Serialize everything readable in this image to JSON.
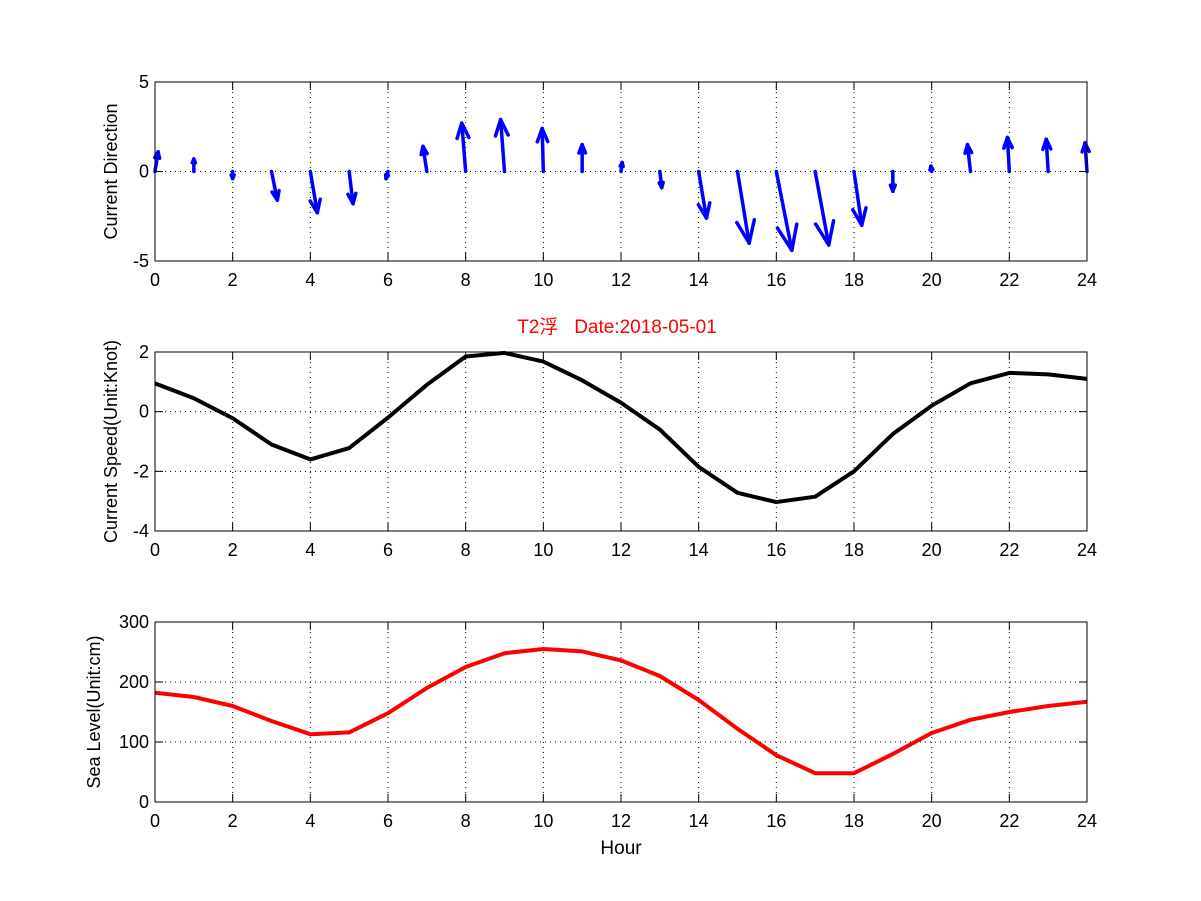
{
  "title": "T2浮   Date:2018-05-01",
  "colors": {
    "direction": "#0000ff",
    "speed": "#000000",
    "sea_level": "#ff0000",
    "title": "#ff0000"
  },
  "chart_data": [
    {
      "type": "quiver",
      "ylabel": "Current Direction",
      "xlabel": "",
      "xlim": [
        0,
        24
      ],
      "ylim": [
        -5,
        5
      ],
      "xticks": [
        0,
        2,
        4,
        6,
        8,
        10,
        12,
        14,
        16,
        18,
        20,
        22,
        24
      ],
      "yticks": [
        -5,
        0,
        5
      ],
      "grid": true,
      "x": [
        0,
        1,
        2,
        3,
        4,
        5,
        6,
        7,
        8,
        9,
        10,
        11,
        12,
        13,
        14,
        15,
        16,
        17,
        18,
        19,
        20,
        21,
        22,
        23,
        24
      ],
      "u": [
        0.08,
        0,
        0,
        0.15,
        0.18,
        0.1,
        -0.05,
        -0.1,
        -0.1,
        -0.1,
        -0.03,
        0,
        0.03,
        0.05,
        0.2,
        0.3,
        0.4,
        0.35,
        0.2,
        0,
        -0.02,
        -0.08,
        -0.05,
        -0.05,
        -0.05
      ],
      "v": [
        1.1,
        0.7,
        -0.4,
        -1.6,
        -2.3,
        -1.8,
        -0.4,
        1.4,
        2.7,
        2.9,
        2.4,
        1.5,
        0.5,
        -0.9,
        -2.6,
        -4.0,
        -4.4,
        -4.1,
        -3.0,
        -1.1,
        0.3,
        1.5,
        1.9,
        1.8,
        1.6
      ]
    },
    {
      "type": "line",
      "title": "T2浮   Date:2018-05-01",
      "ylabel": "Current Speed(Unit:Knot)",
      "xlabel": "",
      "xlim": [
        0,
        24
      ],
      "ylim": [
        -4,
        2
      ],
      "xticks": [
        0,
        2,
        4,
        6,
        8,
        10,
        12,
        14,
        16,
        18,
        20,
        22,
        24
      ],
      "yticks": [
        -4,
        -2,
        0,
        2
      ],
      "grid": true,
      "x": [
        0,
        1,
        2,
        3,
        4,
        5,
        6,
        7,
        8,
        9,
        10,
        11,
        12,
        13,
        14,
        15,
        16,
        17,
        18,
        19,
        20,
        21,
        22,
        23,
        24
      ],
      "y": [
        0.95,
        0.45,
        -0.22,
        -1.1,
        -1.6,
        -1.22,
        -0.2,
        0.9,
        1.85,
        1.97,
        1.68,
        1.05,
        0.3,
        -0.6,
        -1.85,
        -2.72,
        -3.03,
        -2.85,
        -2.0,
        -0.75,
        0.2,
        0.95,
        1.3,
        1.25,
        1.1
      ]
    },
    {
      "type": "line",
      "ylabel": "Sea Level(Unit:cm)",
      "xlabel": "Hour",
      "xlim": [
        0,
        24
      ],
      "ylim": [
        0,
        300
      ],
      "xticks": [
        0,
        2,
        4,
        6,
        8,
        10,
        12,
        14,
        16,
        18,
        20,
        22,
        24
      ],
      "yticks": [
        0,
        100,
        200,
        300
      ],
      "grid": true,
      "x": [
        0,
        1,
        2,
        3,
        4,
        5,
        6,
        7,
        8,
        9,
        10,
        11,
        12,
        13,
        14,
        15,
        16,
        17,
        18,
        19,
        20,
        21,
        22,
        23,
        24
      ],
      "y": [
        182,
        175,
        160,
        135,
        113,
        116,
        148,
        190,
        225,
        248,
        255,
        251,
        236,
        210,
        170,
        122,
        78,
        48,
        48,
        80,
        115,
        137,
        150,
        160,
        167
      ]
    }
  ]
}
